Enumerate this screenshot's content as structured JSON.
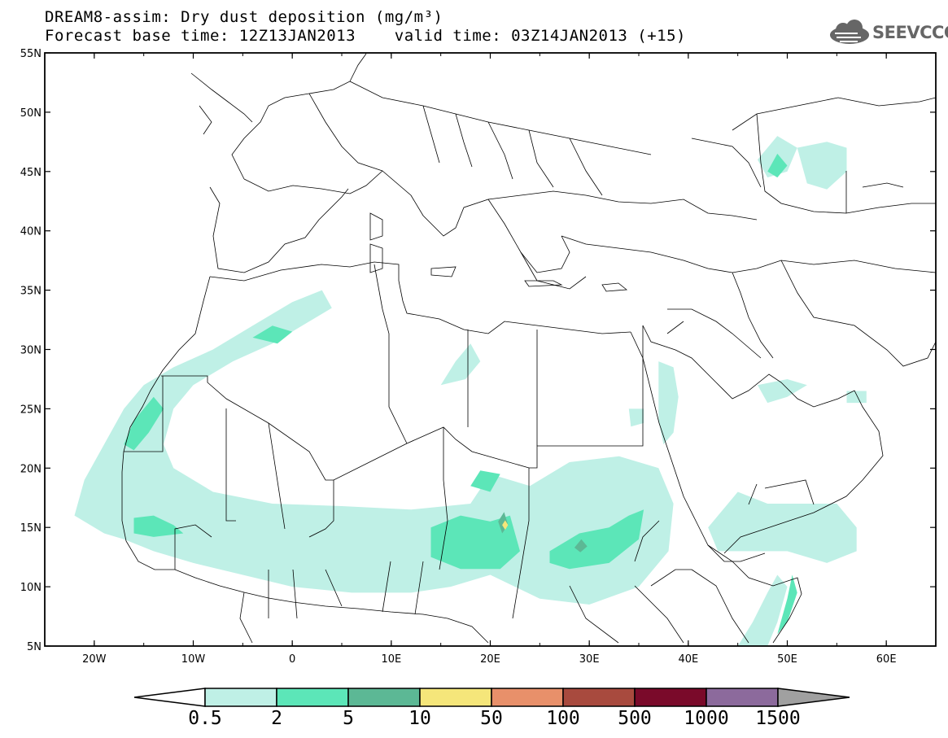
{
  "title": {
    "line1": "DREAM8-assim: Dry dust deposition (mg/m³)",
    "line2": "Forecast base time: 12Z13JAN2013    valid time: 03Z14JAN2013 (+15)"
  },
  "logo": {
    "text": "SEEVCCC",
    "icon": "cloud-icon"
  },
  "axes": {
    "lat_labels": [
      "55N",
      "50N",
      "45N",
      "40N",
      "35N",
      "30N",
      "25N",
      "20N",
      "15N",
      "10N",
      "5N"
    ],
    "lat_values": [
      55,
      50,
      45,
      40,
      35,
      30,
      25,
      20,
      15,
      10,
      5
    ],
    "lon_labels": [
      "20W",
      "10W",
      "0",
      "10E",
      "20E",
      "30E",
      "40E",
      "50E",
      "60E"
    ],
    "lon_values": [
      -20,
      -10,
      0,
      10,
      20,
      30,
      40,
      50,
      60
    ],
    "lon_range": [
      -25,
      65
    ],
    "lat_range": [
      5,
      55
    ]
  },
  "colorbar": {
    "labels": [
      "0.5",
      "2",
      "5",
      "10",
      "50",
      "100",
      "500",
      "1000",
      "1500"
    ],
    "colors": [
      "#bff0e6",
      "#5ce6b8",
      "#5cb895",
      "#f5e67a",
      "#e8906a",
      "#a84a3e",
      "#7a0a2a",
      "#8c6a9c",
      "#a0a0a0"
    ],
    "under_color": "#ffffff",
    "over_color": "#a0a0a0"
  },
  "chart_data": {
    "type": "heatmap",
    "variable": "Dry dust deposition",
    "units": "mg/m³",
    "levels": [
      0.5,
      2,
      5,
      10,
      50,
      100,
      500,
      1000,
      1500
    ],
    "regions": [
      {
        "level": 0.5,
        "polygon": [
          [
            -22,
            16
          ],
          [
            -21,
            19
          ],
          [
            -19,
            22
          ],
          [
            -17,
            25
          ],
          [
            -15,
            27
          ],
          [
            -12,
            28.5
          ],
          [
            -8,
            30
          ],
          [
            -4,
            32
          ],
          [
            0,
            34
          ],
          [
            3,
            35
          ],
          [
            4,
            33.5
          ],
          [
            1,
            32
          ],
          [
            -2,
            30.5
          ],
          [
            -6,
            29
          ],
          [
            -10,
            27
          ],
          [
            -12,
            25
          ],
          [
            -13,
            22
          ],
          [
            -12,
            20
          ],
          [
            -8,
            18
          ],
          [
            -2,
            17
          ],
          [
            5,
            16.8
          ],
          [
            12,
            16.5
          ],
          [
            18,
            17
          ],
          [
            20,
            19.5
          ],
          [
            24,
            18.5
          ],
          [
            28,
            20.5
          ],
          [
            33,
            21
          ],
          [
            37,
            20
          ],
          [
            38.5,
            17
          ],
          [
            38,
            13
          ],
          [
            35,
            10
          ],
          [
            30,
            8.5
          ],
          [
            25,
            9
          ],
          [
            20,
            11
          ],
          [
            16,
            10
          ],
          [
            12,
            9.5
          ],
          [
            6,
            9.5
          ],
          [
            0,
            10
          ],
          [
            -5,
            11
          ],
          [
            -10,
            12
          ],
          [
            -14,
            13
          ],
          [
            -17,
            14
          ],
          [
            -19,
            14.5
          ]
        ]
      },
      {
        "level": 0.5,
        "polygon": [
          [
            15,
            27
          ],
          [
            16.5,
            29
          ],
          [
            18,
            30.5
          ],
          [
            19,
            29
          ],
          [
            17.5,
            27.5
          ]
        ]
      },
      {
        "level": 0.5,
        "polygon": [
          [
            37,
            29
          ],
          [
            38.5,
            28.5
          ],
          [
            39,
            26
          ],
          [
            38.5,
            23
          ],
          [
            37.5,
            22
          ],
          [
            37,
            24
          ]
        ]
      },
      {
        "level": 0.5,
        "polygon": [
          [
            45,
            18
          ],
          [
            48,
            17
          ],
          [
            52,
            17
          ],
          [
            55,
            17
          ],
          [
            57,
            15
          ],
          [
            57,
            13
          ],
          [
            54,
            12
          ],
          [
            50,
            13
          ],
          [
            46,
            13
          ],
          [
            43,
            13
          ],
          [
            42,
            15
          ]
        ]
      },
      {
        "level": 0.5,
        "polygon": [
          [
            45,
            5
          ],
          [
            46.5,
            7
          ],
          [
            48,
            9.5
          ],
          [
            49,
            11
          ],
          [
            50,
            10
          ],
          [
            49,
            7
          ],
          [
            48,
            5
          ]
        ]
      },
      {
        "level": 0.5,
        "polygon": [
          [
            56,
            26.5
          ],
          [
            58,
            26.5
          ],
          [
            58,
            25.5
          ],
          [
            56,
            25.5
          ]
        ]
      },
      {
        "level": 0.5,
        "polygon": [
          [
            47,
            27
          ],
          [
            50,
            27.5
          ],
          [
            52,
            27
          ],
          [
            50,
            26
          ],
          [
            48,
            25.5
          ]
        ]
      },
      {
        "level": 0.5,
        "polygon": [
          [
            34,
            25
          ],
          [
            35.5,
            25
          ],
          [
            35.5,
            23.8
          ],
          [
            34.2,
            23.5
          ]
        ]
      },
      {
        "level": 0.5,
        "polygon": [
          [
            47,
            46
          ],
          [
            49,
            48
          ],
          [
            51,
            47
          ],
          [
            50,
            45
          ],
          [
            48,
            44.5
          ]
        ]
      },
      {
        "level": 0.5,
        "polygon": [
          [
            51,
            47
          ],
          [
            54,
            47.5
          ],
          [
            56,
            47
          ],
          [
            56,
            45
          ],
          [
            54,
            43.5
          ],
          [
            52,
            44
          ]
        ]
      },
      {
        "level": 2,
        "polygon": [
          [
            -17,
            22
          ],
          [
            -16,
            24
          ],
          [
            -14,
            26
          ],
          [
            -13,
            25
          ],
          [
            -14.5,
            23
          ],
          [
            -16,
            21.5
          ]
        ]
      },
      {
        "level": 2,
        "polygon": [
          [
            -16,
            15.8
          ],
          [
            -14,
            16
          ],
          [
            -12,
            15.2
          ],
          [
            -11,
            14.5
          ],
          [
            -14,
            14.2
          ],
          [
            -16,
            14.5
          ]
        ]
      },
      {
        "level": 2,
        "polygon": [
          [
            -4,
            31
          ],
          [
            -2,
            32
          ],
          [
            0,
            31.5
          ],
          [
            -1.5,
            30.5
          ]
        ]
      },
      {
        "level": 2,
        "polygon": [
          [
            14,
            15
          ],
          [
            17,
            16
          ],
          [
            20,
            15.5
          ],
          [
            22,
            16
          ],
          [
            23,
            13
          ],
          [
            21,
            11.5
          ],
          [
            17,
            11.5
          ],
          [
            14,
            12.5
          ]
        ]
      },
      {
        "level": 2,
        "polygon": [
          [
            18,
            18.5
          ],
          [
            19,
            19.8
          ],
          [
            21,
            19.5
          ],
          [
            20,
            18
          ]
        ]
      },
      {
        "level": 2,
        "polygon": [
          [
            26,
            13
          ],
          [
            29,
            14.5
          ],
          [
            32,
            15
          ],
          [
            34,
            16
          ],
          [
            35.5,
            16.5
          ],
          [
            35,
            14
          ],
          [
            32,
            12
          ],
          [
            28,
            11.5
          ],
          [
            26,
            12
          ]
        ]
      },
      {
        "level": 2,
        "polygon": [
          [
            49,
            6
          ],
          [
            50,
            9
          ],
          [
            50.5,
            11
          ],
          [
            51,
            9.5
          ],
          [
            50,
            7
          ]
        ]
      },
      {
        "level": 2,
        "polygon": [
          [
            48,
            45
          ],
          [
            49,
            46.5
          ],
          [
            50,
            45.5
          ],
          [
            49,
            44.5
          ]
        ]
      },
      {
        "level": 5,
        "polygon": [
          [
            20.8,
            15.5
          ],
          [
            21.4,
            16.3
          ],
          [
            21.8,
            15.2
          ],
          [
            21.2,
            14.5
          ]
        ]
      },
      {
        "level": 5,
        "polygon": [
          [
            28.5,
            13.3
          ],
          [
            29.2,
            14
          ],
          [
            29.8,
            13.4
          ],
          [
            29.1,
            12.9
          ]
        ]
      },
      {
        "level": 10,
        "polygon": [
          [
            21.2,
            15.2
          ],
          [
            21.5,
            15.6
          ],
          [
            21.8,
            15.2
          ],
          [
            21.5,
            14.8
          ]
        ]
      }
    ]
  }
}
